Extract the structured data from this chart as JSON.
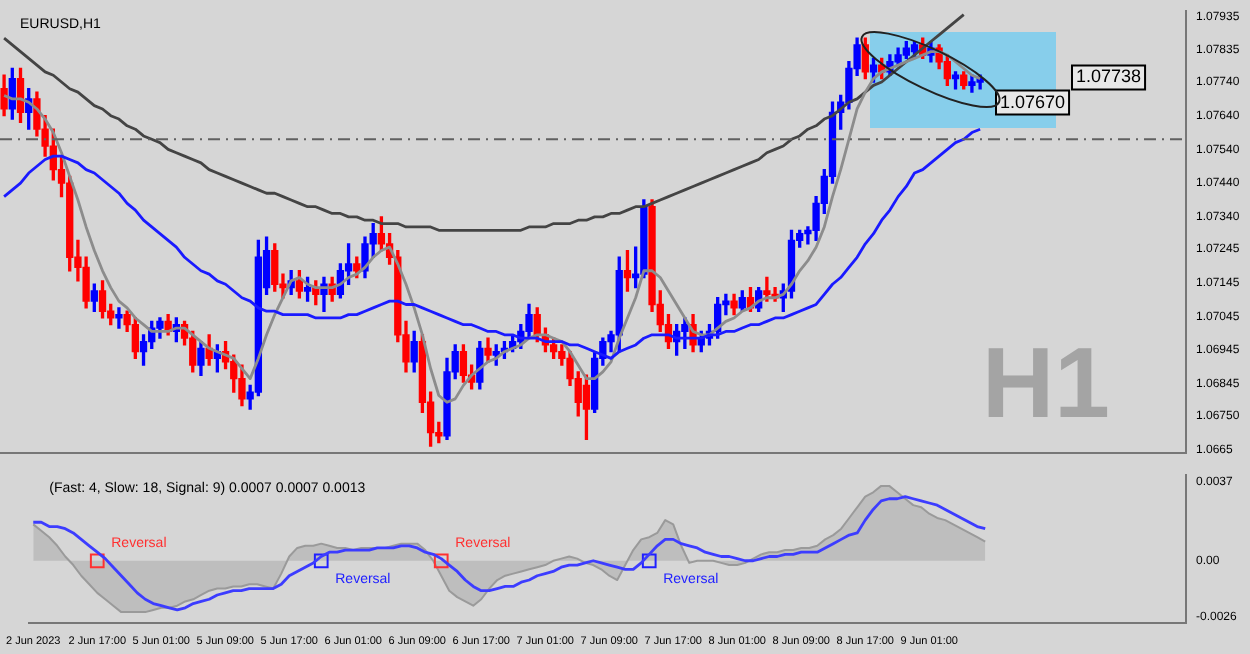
{
  "chart_data": [
    {
      "type": "candlestick",
      "title": "EURUSD,H1",
      "categories": [
        null,
        null,
        null,
        null,
        null,
        null,
        null,
        null,
        null,
        null,
        null,
        null,
        null,
        null,
        null,
        null,
        null,
        null,
        null,
        null,
        null,
        null,
        null,
        null,
        null,
        null,
        null,
        null,
        null,
        null,
        null,
        null,
        null,
        null,
        null,
        null,
        null,
        null,
        null,
        null,
        null,
        null,
        null,
        null,
        null,
        null,
        null,
        null,
        null,
        null,
        null,
        null,
        null,
        null,
        null,
        null,
        null,
        null,
        null,
        null,
        null,
        null,
        null,
        null,
        null,
        null,
        null,
        null,
        null,
        null,
        null,
        null,
        null,
        null,
        null,
        null,
        null,
        null,
        null,
        null,
        null,
        null,
        null,
        null,
        null,
        null,
        null,
        null,
        null,
        null,
        null,
        null,
        null,
        null,
        null,
        null,
        null,
        null,
        null,
        null,
        null,
        null,
        null,
        null,
        null,
        null,
        null,
        null,
        null,
        null,
        null,
        null,
        null,
        null,
        null,
        null,
        null,
        null,
        null,
        null
      ],
      "ohlc": [
        [
          1.0772,
          1.0776,
          1.0764,
          1.0766
        ],
        [
          1.0766,
          1.0778,
          1.0763,
          1.0775
        ],
        [
          1.0775,
          1.0778,
          1.0762,
          1.0765
        ],
        [
          1.0765,
          1.0772,
          1.076,
          1.0769
        ],
        [
          1.0769,
          1.0771,
          1.0758,
          1.076
        ],
        [
          1.076,
          1.0764,
          1.0752,
          1.0755
        ],
        [
          1.0755,
          1.076,
          1.0745,
          1.0748
        ],
        [
          1.0748,
          1.0752,
          1.074,
          1.0744
        ],
        [
          1.0744,
          1.0746,
          1.0718,
          1.0722
        ],
        [
          1.0722,
          1.0727,
          1.0715,
          1.0719
        ],
        [
          1.0719,
          1.0722,
          1.0707,
          1.0709
        ],
        [
          1.0709,
          1.0714,
          1.0706,
          1.0712
        ],
        [
          1.0712,
          1.0715,
          1.0704,
          1.0706
        ],
        [
          1.0706,
          1.0708,
          1.0702,
          1.0704
        ],
        [
          1.0704,
          1.0707,
          1.0701,
          1.0705
        ],
        [
          1.0705,
          1.0706,
          1.07,
          1.0702
        ],
        [
          1.0702,
          1.0704,
          1.0692,
          1.0694
        ],
        [
          1.0694,
          1.0699,
          1.069,
          1.0697
        ],
        [
          1.0697,
          1.0703,
          1.0695,
          1.0701
        ],
        [
          1.0701,
          1.0704,
          1.0698,
          1.0703
        ],
        [
          1.0703,
          1.0705,
          1.0699,
          1.07
        ],
        [
          1.07,
          1.0704,
          1.0697,
          1.0702
        ],
        [
          1.0702,
          1.0703,
          1.0696,
          1.0698
        ],
        [
          1.0698,
          1.07,
          1.0688,
          1.069
        ],
        [
          1.069,
          1.0697,
          1.0687,
          1.0695
        ],
        [
          1.0695,
          1.0699,
          1.069,
          1.0692
        ],
        [
          1.0692,
          1.0696,
          1.0688,
          1.0694
        ],
        [
          1.0694,
          1.0697,
          1.0689,
          1.0691
        ],
        [
          1.0691,
          1.0693,
          1.0682,
          1.0686
        ],
        [
          1.0686,
          1.069,
          1.0678,
          1.068
        ],
        [
          1.068,
          1.0684,
          1.0677,
          1.0682
        ],
        [
          1.0682,
          1.0727,
          1.0681,
          1.0722
        ],
        [
          1.0713,
          1.0728,
          1.0711,
          1.0724
        ],
        [
          1.0724,
          1.0726,
          1.0712,
          1.0714
        ],
        [
          1.0714,
          1.0717,
          1.071,
          1.0713
        ],
        [
          1.0713,
          1.0718,
          1.0711,
          1.0715
        ],
        [
          1.0715,
          1.0718,
          1.071,
          1.0712
        ],
        [
          1.0712,
          1.0716,
          1.0709,
          1.0713
        ],
        [
          1.0713,
          1.0715,
          1.0708,
          1.0711
        ],
        [
          1.0711,
          1.0716,
          1.0706,
          1.0714
        ],
        [
          1.0714,
          1.0716,
          1.0709,
          1.0711
        ],
        [
          1.0711,
          1.072,
          1.071,
          1.0718
        ],
        [
          1.0718,
          1.0726,
          1.0714,
          1.072
        ],
        [
          1.072,
          1.0722,
          1.0716,
          1.0718
        ],
        [
          1.0718,
          1.0728,
          1.0716,
          1.0726
        ],
        [
          1.0726,
          1.0732,
          1.0722,
          1.0729
        ],
        [
          1.0729,
          1.0734,
          1.0724,
          1.0726
        ],
        [
          1.0726,
          1.0729,
          1.072,
          1.0722
        ],
        [
          1.0722,
          1.0724,
          1.0697,
          1.0699
        ],
        [
          1.0699,
          1.0703,
          1.0688,
          1.0691
        ],
        [
          1.0691,
          1.07,
          1.0688,
          1.0697
        ],
        [
          1.0697,
          1.0699,
          1.0676,
          1.0679
        ],
        [
          1.0679,
          1.0682,
          1.0666,
          1.067
        ],
        [
          1.067,
          1.0673,
          1.0667,
          1.0669
        ],
        [
          1.0669,
          1.0692,
          1.0668,
          1.0688
        ],
        [
          1.0688,
          1.0696,
          1.0686,
          1.0694
        ],
        [
          1.0694,
          1.0696,
          1.0685,
          1.0687
        ],
        [
          1.0687,
          1.069,
          1.0683,
          1.0685
        ],
        [
          1.0685,
          1.0697,
          1.0683,
          1.0695
        ],
        [
          1.0695,
          1.0698,
          1.0691,
          1.0693
        ],
        [
          1.0693,
          1.0696,
          1.069,
          1.0694
        ],
        [
          1.0694,
          1.0697,
          1.0692,
          1.0695
        ],
        [
          1.0695,
          1.0699,
          1.0694,
          1.0697
        ],
        [
          1.0697,
          1.0702,
          1.0695,
          1.07
        ],
        [
          1.07,
          1.0708,
          1.0698,
          1.0705
        ],
        [
          1.0705,
          1.0707,
          1.0697,
          1.0699
        ],
        [
          1.0699,
          1.0701,
          1.0694,
          1.0696
        ],
        [
          1.0696,
          1.0698,
          1.0692,
          1.0694
        ],
        [
          1.0694,
          1.0696,
          1.069,
          1.0692
        ],
        [
          1.0692,
          1.0694,
          1.0684,
          1.0686
        ],
        [
          1.0686,
          1.0688,
          1.0675,
          1.0679
        ],
        [
          1.0684,
          1.0687,
          1.0668,
          1.0677
        ],
        [
          1.0677,
          1.0694,
          1.0676,
          1.0692
        ],
        [
          1.0692,
          1.0698,
          1.069,
          1.0697
        ],
        [
          1.0697,
          1.07,
          1.0694,
          1.0699
        ],
        [
          1.0699,
          1.0722,
          1.0694,
          1.0718
        ],
        [
          1.0718,
          1.0724,
          1.0712,
          1.0716
        ],
        [
          1.0716,
          1.0725,
          1.0713,
          1.0717
        ],
        [
          1.0717,
          1.0739,
          1.0716,
          1.0737
        ],
        [
          1.0737,
          1.0739,
          1.0706,
          1.0708
        ],
        [
          1.0708,
          1.0712,
          1.07,
          1.0702
        ],
        [
          1.0702,
          1.0705,
          1.0695,
          1.0697
        ],
        [
          1.0697,
          1.0702,
          1.0693,
          1.07
        ],
        [
          1.07,
          1.0704,
          1.0695,
          1.0702
        ],
        [
          1.0702,
          1.0705,
          1.0694,
          1.0696
        ],
        [
          1.0696,
          1.07,
          1.0694,
          1.0698
        ],
        [
          1.0698,
          1.0702,
          1.0696,
          1.07
        ],
        [
          1.07,
          1.071,
          1.0698,
          1.0708
        ],
        [
          1.0708,
          1.0711,
          1.0705,
          1.0709
        ],
        [
          1.0709,
          1.0711,
          1.0705,
          1.0707
        ],
        [
          1.0707,
          1.0712,
          1.0706,
          1.071
        ],
        [
          1.071,
          1.0713,
          1.0706,
          1.0707
        ],
        [
          1.0707,
          1.0713,
          1.0706,
          1.0712
        ],
        [
          1.0712,
          1.0716,
          1.0709,
          1.0711
        ],
        [
          1.0711,
          1.0713,
          1.0709,
          1.071
        ],
        [
          1.071,
          1.0714,
          1.0706,
          1.0712
        ],
        [
          1.0712,
          1.073,
          1.071,
          1.0727
        ],
        [
          1.0727,
          1.073,
          1.0725,
          1.0729
        ],
        [
          1.0729,
          1.0731,
          1.0726,
          1.073
        ],
        [
          1.073,
          1.074,
          1.0727,
          1.0738
        ],
        [
          1.0738,
          1.0748,
          1.0735,
          1.0746
        ],
        [
          1.0746,
          1.0768,
          1.0744,
          1.0765
        ],
        [
          1.0765,
          1.077,
          1.076,
          1.0768
        ],
        [
          1.0768,
          1.078,
          1.0766,
          1.0778
        ],
        [
          1.0778,
          1.0787,
          1.0776,
          1.0785
        ],
        [
          1.0785,
          1.0787,
          1.0775,
          1.0777
        ],
        [
          1.0777,
          1.0781,
          1.0774,
          1.0779
        ],
        [
          1.0779,
          1.0781,
          1.0775,
          1.0777
        ],
        [
          1.0777,
          1.0782,
          1.0776,
          1.078
        ],
        [
          1.078,
          1.0784,
          1.0779,
          1.0782
        ],
        [
          1.0782,
          1.0786,
          1.0781,
          1.0784
        ],
        [
          1.0783,
          1.0786,
          1.0781,
          1.0785
        ],
        [
          1.0785,
          1.0787,
          1.0781,
          1.0782
        ],
        [
          1.0782,
          1.0786,
          1.078,
          1.0784
        ],
        [
          1.0784,
          1.0785,
          1.0778,
          1.078
        ],
        [
          1.078,
          1.0782,
          1.0773,
          1.0775
        ],
        [
          1.0775,
          1.0777,
          1.0772,
          1.0776
        ],
        [
          1.0776,
          1.0777,
          1.0772,
          1.0773
        ],
        [
          1.0773,
          1.0776,
          1.0771,
          1.0774
        ],
        [
          1.0774,
          1.0776,
          1.0772,
          1.0775
        ]
      ],
      "colors": [
        "#ff0000",
        "#0000ff",
        "#ff0000",
        "#0000ff",
        "#ff0000",
        "#ff0000",
        "#ff0000",
        "#ff0000",
        "#ff0000",
        "#ff0000",
        "#ff0000",
        "#0000ff",
        "#ff0000",
        "#ff0000",
        "#0000ff",
        "#ff0000",
        "#ff0000",
        "#0000ff",
        "#0000ff",
        "#0000ff",
        "#ff0000",
        "#0000ff",
        "#ff0000",
        "#ff0000",
        "#0000ff",
        "#ff0000",
        "#0000ff",
        "#ff0000",
        "#ff0000",
        "#ff0000",
        "#0000ff",
        "#0000ff",
        "#0000ff",
        "#ff0000",
        "#ff0000",
        "#0000ff",
        "#ff0000",
        "#0000ff",
        "#ff0000",
        "#0000ff",
        "#ff0000",
        "#0000ff",
        "#0000ff",
        "#ff0000",
        "#0000ff",
        "#0000ff",
        "#ff0000",
        "#ff0000",
        "#ff0000",
        "#ff0000",
        "#0000ff",
        "#ff0000",
        "#ff0000",
        "#ff0000",
        "#0000ff",
        "#0000ff",
        "#ff0000",
        "#ff0000",
        "#0000ff",
        "#ff0000",
        "#0000ff",
        "#0000ff",
        "#0000ff",
        "#0000ff",
        "#0000ff",
        "#ff0000",
        "#ff0000",
        "#ff0000",
        "#ff0000",
        "#ff0000",
        "#ff0000",
        "#ff0000",
        "#0000ff",
        "#0000ff",
        "#0000ff",
        "#0000ff",
        "#ff0000",
        "#0000ff",
        "#0000ff",
        "#ff0000",
        "#ff0000",
        "#ff0000",
        "#0000ff",
        "#0000ff",
        "#ff0000",
        "#0000ff",
        "#0000ff",
        "#0000ff",
        "#0000ff",
        "#ff0000",
        "#0000ff",
        "#ff0000",
        "#0000ff",
        "#ff0000",
        "#ff0000",
        "#0000ff",
        "#0000ff",
        "#0000ff",
        "#0000ff",
        "#0000ff",
        "#0000ff",
        "#0000ff",
        "#0000ff",
        "#0000ff",
        "#0000ff",
        "#ff0000",
        "#0000ff",
        "#ff0000",
        "#0000ff",
        "#0000ff",
        "#0000ff",
        "#0000ff",
        "#ff0000",
        "#0000ff",
        "#ff0000",
        "#ff0000",
        "#0000ff",
        "#ff0000",
        "#0000ff",
        "#0000ff"
      ],
      "series": [
        {
          "type": "line",
          "color": "#1a1aff",
          "values": [
            1.074,
            1.0742,
            1.0744,
            1.0747,
            1.0749,
            1.0751,
            1.0752,
            1.0752,
            1.0751,
            1.075,
            1.0748,
            1.0747,
            1.0745,
            1.0743,
            1.0741,
            1.0738,
            1.0736,
            1.0733,
            1.0731,
            1.0729,
            1.0727,
            1.0725,
            1.0722,
            1.072,
            1.0718,
            1.0717,
            1.0715,
            1.0714,
            1.0712,
            1.071,
            1.0709,
            1.0707,
            1.0706,
            1.0706,
            1.0705,
            1.0705,
            1.0705,
            1.0705,
            1.0704,
            1.0704,
            1.0704,
            1.0704,
            1.0705,
            1.0705,
            1.0706,
            1.0707,
            1.0708,
            1.0709,
            1.0709,
            1.0708,
            1.0708,
            1.0707,
            1.0706,
            1.0705,
            1.0704,
            1.0703,
            1.0702,
            1.0702,
            1.0701,
            1.07,
            1.07,
            1.0699,
            1.0699,
            1.0698,
            1.0698,
            1.0698,
            1.0697,
            1.0697,
            1.0697,
            1.0696,
            1.0696,
            1.0695,
            1.0694,
            1.0693,
            1.0692,
            1.0694,
            1.0695,
            1.0696,
            1.0698,
            1.0699,
            1.0699,
            1.0699,
            1.0698,
            1.0698,
            1.0698,
            1.0698,
            1.0699,
            1.0699,
            1.07,
            1.07,
            1.0701,
            1.0702,
            1.0702,
            1.0703,
            1.0704,
            1.0704,
            1.0705,
            1.0706,
            1.0707,
            1.0708,
            1.0711,
            1.0714,
            1.0716,
            1.0719,
            1.0722,
            1.0726,
            1.0729,
            1.0733,
            1.0736,
            1.074,
            1.0743,
            1.0747,
            1.0748,
            1.075,
            1.0752,
            1.0754,
            1.0756,
            1.0757,
            1.0759,
            1.076
          ]
        },
        {
          "type": "line",
          "color": "#8c8c8c",
          "values": [
            1.077,
            1.0769,
            1.0769,
            1.0768,
            1.0766,
            1.0763,
            1.0759,
            1.0753,
            1.0746,
            1.0739,
            1.0731,
            1.0724,
            1.0718,
            1.0713,
            1.0709,
            1.0707,
            1.0704,
            1.0702,
            1.07,
            1.07,
            1.07,
            1.0701,
            1.0701,
            1.0699,
            1.0697,
            1.0695,
            1.0694,
            1.0693,
            1.0692,
            1.0689,
            1.0686,
            1.0692,
            1.0699,
            1.0705,
            1.071,
            1.0715,
            1.0716,
            1.0714,
            1.0713,
            1.0713,
            1.0713,
            1.0714,
            1.0716,
            1.0717,
            1.0719,
            1.0722,
            1.0724,
            1.0725,
            1.072,
            1.0714,
            1.0707,
            1.0699,
            1.0689,
            1.0681,
            1.0679,
            1.068,
            1.0684,
            1.0687,
            1.0689,
            1.0691,
            1.0692,
            1.0694,
            1.0695,
            1.0696,
            1.0698,
            1.0699,
            1.0699,
            1.0698,
            1.0697,
            1.0694,
            1.069,
            1.0686,
            1.0686,
            1.0688,
            1.0691,
            1.0698,
            1.0704,
            1.071,
            1.0718,
            1.0718,
            1.0716,
            1.0712,
            1.0708,
            1.0704,
            1.07,
            1.0699,
            1.0699,
            1.0701,
            1.0703,
            1.0704,
            1.0706,
            1.0707,
            1.0709,
            1.071,
            1.071,
            1.0711,
            1.0714,
            1.0718,
            1.0721,
            1.0725,
            1.0731,
            1.074,
            1.0748,
            1.0757,
            1.0766,
            1.0771,
            1.0775,
            1.0777,
            1.0778,
            1.0779,
            1.078,
            1.0781,
            1.0782,
            1.0783,
            1.0783,
            1.0782,
            1.078,
            1.0778,
            1.0776,
            1.0775
          ]
        },
        {
          "type": "line",
          "color": "#444444",
          "values": [
            1.0787,
            1.0785,
            1.0783,
            1.0781,
            1.0779,
            1.0777,
            1.0776,
            1.0774,
            1.0772,
            1.0771,
            1.0769,
            1.0767,
            1.0766,
            1.0764,
            1.0763,
            1.0761,
            1.076,
            1.0758,
            1.0757,
            1.0756,
            1.0754,
            1.0753,
            1.0752,
            1.0751,
            1.075,
            1.0748,
            1.0747,
            1.0746,
            1.0745,
            1.0744,
            1.0743,
            1.0742,
            1.0741,
            1.0741,
            1.074,
            1.0739,
            1.0738,
            1.0737,
            1.0737,
            1.0736,
            1.0735,
            1.0735,
            1.0734,
            1.0734,
            1.0733,
            1.0733,
            1.0732,
            1.0732,
            1.0732,
            1.0731,
            1.0731,
            1.0731,
            1.0731,
            1.073,
            1.073,
            1.073,
            1.073,
            1.073,
            1.073,
            1.073,
            1.073,
            1.073,
            1.073,
            1.073,
            1.0731,
            1.0731,
            1.0731,
            1.0732,
            1.0732,
            1.0732,
            1.0733,
            1.0733,
            1.0734,
            1.0734,
            1.0735,
            1.0735,
            1.0736,
            1.0737,
            1.0737,
            1.0738,
            1.0739,
            1.074,
            1.0741,
            1.0742,
            1.0743,
            1.0744,
            1.0745,
            1.0746,
            1.0747,
            1.0748,
            1.0749,
            1.075,
            1.0751,
            1.0753,
            1.0754,
            1.0755,
            1.0757,
            1.0758,
            1.076,
            1.0761,
            1.0763,
            1.0764,
            1.0766,
            1.0768,
            1.0769,
            1.0771,
            1.0773,
            1.0774,
            1.0776,
            1.0778,
            1.078,
            1.0782,
            1.0784,
            1.0786,
            1.0788,
            1.079,
            1.0792,
            1.0794,
            null,
            null
          ]
        }
      ],
      "ylim": [
        1.0664,
        1.0795
      ],
      "yticks": [
        1.0665,
        {
          "value": 1.0675,
          "label": "1.06750"
        },
        1.06845,
        1.06945,
        1.07045,
        1.07145,
        1.07245,
        {
          "value": 1.0734,
          "label": "1.07340"
        },
        {
          "value": 1.0744,
          "label": "1.07440"
        },
        {
          "value": 1.0754,
          "label": "1.07540"
        },
        {
          "value": 1.0764,
          "label": "1.07640"
        },
        {
          "value": 1.0774,
          "label": "1.07740"
        },
        1.07835,
        1.07935
      ],
      "tick_labels": "y",
      "ref_lines": [
        {
          "axis": "y",
          "value": 1.0757,
          "label": null,
          "color": "#606060",
          "line_style": "dashed"
        }
      ],
      "annotations": [
        "1.07738",
        "1.07670",
        "H1"
      ]
    },
    {
      "type": "line",
      "title": "(Fast: 4, Slow: 18, Signal: 9) 0.0007 0.0007 0.0013",
      "categories": [
        "2 Jun 2023",
        null,
        null,
        null,
        null,
        null,
        null,
        null,
        "2 Jun 17:00",
        null,
        null,
        null,
        null,
        null,
        null,
        null,
        "5 Jun 01:00",
        null,
        null,
        null,
        null,
        null,
        null,
        null,
        "5 Jun 09:00",
        null,
        null,
        null,
        null,
        null,
        null,
        null,
        "5 Jun 17:00",
        null,
        null,
        null,
        null,
        null,
        null,
        null,
        "6 Jun 01:00",
        null,
        null,
        null,
        null,
        null,
        null,
        null,
        "6 Jun 09:00",
        null,
        null,
        null,
        null,
        null,
        null,
        null,
        "6 Jun 17:00",
        null,
        null,
        null,
        null,
        null,
        null,
        null,
        "7 Jun 01:00",
        null,
        null,
        null,
        null,
        null,
        null,
        null,
        "7 Jun 09:00",
        null,
        null,
        null,
        null,
        null,
        null,
        null,
        "7 Jun 17:00",
        null,
        null,
        null,
        null,
        null,
        null,
        null,
        "8 Jun 01:00",
        null,
        null,
        null,
        null,
        null,
        null,
        null,
        "8 Jun 09:00",
        null,
        null,
        null,
        null,
        null,
        null,
        null,
        "8 Jun 17:00",
        null,
        null,
        null,
        null,
        null,
        null,
        null,
        "9 Jun 01:00",
        null,
        null,
        null,
        null,
        null,
        null,
        null
      ],
      "series": [
        {
          "type": "area",
          "color": "#9a9a9a",
          "values": [
            0.0017,
            0.0014,
            0.0011,
            0.0007,
            0.0002,
            -0.0002,
            -0.0007,
            -0.0011,
            -0.0015,
            -0.0018,
            -0.0021,
            -0.0024,
            -0.0024,
            -0.0024,
            -0.0024,
            -0.0023,
            -0.0022,
            -0.0022,
            -0.0021,
            -0.0019,
            -0.0018,
            -0.0016,
            -0.0014,
            -0.0013,
            -0.0013,
            -0.0012,
            -0.0012,
            -0.0011,
            -0.0011,
            -0.0012,
            -0.0013,
            -0.0006,
            0.0002,
            0.0006,
            0.0007,
            0.0007,
            0.0008,
            0.0007,
            0.0006,
            0.0006,
            0.0005,
            0.0006,
            0.0006,
            0.0006,
            0.0006,
            0.0007,
            0.0008,
            0.0008,
            0.0008,
            0.0005,
            0.0,
            -0.0007,
            -0.0014,
            -0.0017,
            -0.0019,
            -0.0021,
            -0.0018,
            -0.0013,
            -0.0009,
            -0.0007,
            -0.0006,
            -0.0005,
            -0.0004,
            -0.0003,
            -0.0002,
            0.0,
            0.0001,
            0.0002,
            0.0001,
            -0.0001,
            -0.0002,
            -0.0004,
            -0.0007,
            -0.0009,
            -0.0002,
            0.0005,
            0.001,
            0.0011,
            0.0013,
            0.0019,
            0.0017,
            0.0007,
            -0.0001,
            0.0,
            0.0,
            0.0,
            -0.0001,
            -0.0002,
            -0.0002,
            -0.0001,
            0.0001,
            0.0003,
            0.0004,
            0.0004,
            0.0005,
            0.0005,
            0.0006,
            0.0006,
            0.0007,
            0.001,
            0.0012,
            0.0015,
            0.002,
            0.0025,
            0.003,
            0.0032,
            0.0035,
            0.0035,
            0.0032,
            0.0029,
            0.0026,
            0.0025,
            0.0022,
            0.002,
            0.0019,
            0.0017,
            0.0015,
            0.0013,
            0.0011,
            0.0009
          ]
        },
        {
          "type": "line",
          "color": "#3c3cff",
          "values": [
            0.0018,
            0.0018,
            0.0016,
            0.0016,
            0.0015,
            0.0013,
            0.001,
            0.0007,
            0.0004,
            0.0001,
            -0.0003,
            -0.0007,
            -0.0011,
            -0.0015,
            -0.0018,
            -0.002,
            -0.0021,
            -0.0022,
            -0.0023,
            -0.0022,
            -0.002,
            -0.0019,
            -0.0018,
            -0.0016,
            -0.0015,
            -0.0014,
            -0.0014,
            -0.0013,
            -0.0013,
            -0.0013,
            -0.0013,
            -0.0011,
            -0.0007,
            -0.0005,
            -0.0003,
            -0.0001,
            0.0002,
            0.0004,
            0.0004,
            0.0005,
            0.0005,
            0.0005,
            0.0005,
            0.0006,
            0.0006,
            0.0006,
            0.0007,
            0.0007,
            0.0006,
            0.0004,
            0.0003,
            0.0001,
            -0.0002,
            -0.0005,
            -0.0009,
            -0.0012,
            -0.0014,
            -0.0014,
            -0.0013,
            -0.0012,
            -0.0012,
            -0.001,
            -0.0009,
            -0.0007,
            -0.0006,
            -0.0005,
            -0.0003,
            -0.0002,
            -0.0002,
            -0.0001,
            0.0,
            -0.0001,
            -0.0002,
            -0.0003,
            -0.0004,
            -0.0004,
            -0.0001,
            0.0003,
            0.0007,
            0.001,
            0.001,
            0.0008,
            0.0007,
            0.0006,
            0.0004,
            0.0003,
            0.0002,
            0.0002,
            0.0001,
            0.0,
            0.0,
            0.0001,
            0.0002,
            0.0002,
            0.0003,
            0.0003,
            0.0004,
            0.0004,
            0.0004,
            0.0006,
            0.0008,
            0.001,
            0.0012,
            0.0013,
            0.0019,
            0.0024,
            0.0028,
            0.0029,
            0.0029,
            0.003,
            0.0029,
            0.0028,
            0.0027,
            0.0026,
            0.0024,
            0.0022,
            0.002,
            0.0018,
            0.0016,
            0.0015
          ]
        },
        {
          "type": "scatter",
          "name": "Reversal",
          "color": "#ff3030",
          "marker": "square",
          "values": [
            null,
            null,
            null,
            null,
            null,
            null,
            null,
            null,
            0,
            null,
            null,
            null,
            null,
            null,
            null,
            null,
            null,
            null,
            null,
            null,
            null,
            null,
            null,
            null,
            null,
            null,
            null,
            null,
            null,
            null,
            null,
            null,
            null,
            null,
            null,
            null,
            null,
            null,
            null,
            null,
            null,
            null,
            null,
            null,
            null,
            null,
            null,
            null,
            null,
            null,
            null,
            0,
            null,
            null,
            null,
            null,
            null,
            null,
            null,
            null,
            null,
            null,
            null,
            null,
            null,
            null,
            null,
            null,
            null,
            null,
            null,
            null,
            null,
            null,
            null,
            null,
            null,
            null,
            null,
            null,
            null,
            null,
            null,
            null,
            null,
            null,
            null,
            null,
            null,
            null,
            null,
            null,
            null,
            null,
            null,
            null,
            null,
            null,
            null,
            null,
            null,
            null,
            null,
            null,
            null,
            null,
            null,
            null,
            null,
            null,
            null,
            null,
            null,
            null,
            null,
            null,
            null,
            null,
            null,
            null
          ]
        },
        {
          "type": "scatter",
          "name": "Reversal",
          "color": "#2020ff",
          "marker": "square",
          "values": [
            null,
            null,
            null,
            null,
            null,
            null,
            null,
            null,
            null,
            null,
            null,
            null,
            null,
            null,
            null,
            null,
            null,
            null,
            null,
            null,
            null,
            null,
            null,
            null,
            null,
            null,
            null,
            null,
            null,
            null,
            null,
            null,
            null,
            null,
            null,
            null,
            0,
            null,
            null,
            null,
            null,
            null,
            null,
            null,
            null,
            null,
            null,
            null,
            null,
            null,
            null,
            null,
            null,
            null,
            null,
            null,
            null,
            null,
            null,
            null,
            null,
            null,
            null,
            null,
            null,
            null,
            null,
            null,
            null,
            null,
            null,
            null,
            null,
            null,
            null,
            null,
            null,
            0,
            null,
            null,
            null,
            null,
            null,
            null,
            null,
            null,
            null,
            null,
            null,
            null,
            null,
            null,
            null,
            null,
            null,
            null,
            null,
            null,
            null,
            null,
            null,
            null,
            null,
            null,
            null,
            null,
            null,
            null,
            null,
            null,
            null,
            null,
            null,
            null,
            null,
            null,
            null,
            null,
            null,
            null
          ]
        }
      ],
      "ylim": [
        -0.0029,
        0.004
      ],
      "yticks": [
        -0.0026,
        {
          "value": 0,
          "label": "0.00"
        },
        0.0037
      ]
    }
  ]
}
